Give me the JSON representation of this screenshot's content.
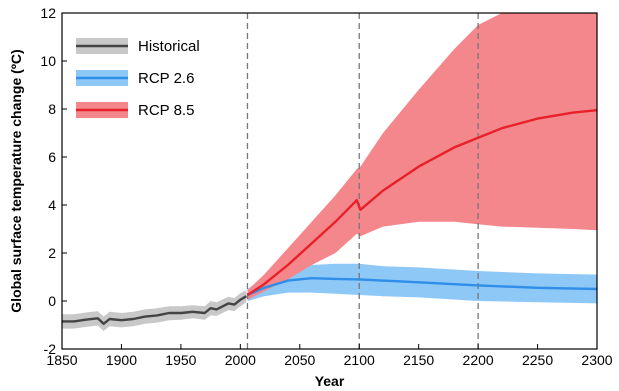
{
  "chart_data": {
    "type": "line",
    "xlabel": "Year",
    "ylabel": "Global surface temperature change (ºC)",
    "xlim": [
      1850,
      2300
    ],
    "ylim": [
      -2,
      12
    ],
    "xticks": [
      1850,
      1900,
      1950,
      2000,
      2050,
      2100,
      2150,
      2200,
      2250,
      2300
    ],
    "yticks": [
      -2,
      0,
      2,
      4,
      6,
      8,
      10,
      12
    ],
    "grid": false,
    "legend_position": "top-left",
    "reference_lines_x": [
      2006,
      2100,
      2200
    ],
    "series": [
      {
        "name": "Historical",
        "color": "#444444",
        "band_color": "#c8c8c8",
        "x": [
          1850,
          1860,
          1870,
          1880,
          1885,
          1890,
          1900,
          1910,
          1920,
          1930,
          1940,
          1950,
          1960,
          1970,
          1975,
          1980,
          1990,
          1995,
          2000,
          2005
        ],
        "y": [
          -0.85,
          -0.85,
          -0.78,
          -0.72,
          -0.95,
          -0.75,
          -0.8,
          -0.75,
          -0.65,
          -0.6,
          -0.5,
          -0.5,
          -0.45,
          -0.5,
          -0.3,
          -0.35,
          -0.1,
          -0.15,
          0.05,
          0.2
        ],
        "lower": [
          -1.15,
          -1.15,
          -1.08,
          -1.02,
          -1.25,
          -1.05,
          -1.1,
          -1.05,
          -0.95,
          -0.9,
          -0.8,
          -0.78,
          -0.72,
          -0.78,
          -0.6,
          -0.62,
          -0.38,
          -0.42,
          -0.22,
          -0.05
        ],
        "upper": [
          -0.55,
          -0.55,
          -0.48,
          -0.42,
          -0.65,
          -0.45,
          -0.5,
          -0.45,
          -0.35,
          -0.3,
          -0.22,
          -0.22,
          -0.18,
          -0.22,
          0.0,
          -0.05,
          0.18,
          0.12,
          0.32,
          0.45
        ]
      },
      {
        "name": "RCP 2.6",
        "color": "#2e8ee8",
        "band_color": "#8ec8f7",
        "x": [
          2006,
          2020,
          2040,
          2060,
          2080,
          2100,
          2120,
          2150,
          2200,
          2250,
          2300
        ],
        "y": [
          0.25,
          0.55,
          0.85,
          0.95,
          0.92,
          0.9,
          0.85,
          0.78,
          0.65,
          0.55,
          0.5
        ],
        "lower": [
          0.0,
          0.2,
          0.35,
          0.35,
          0.3,
          0.25,
          0.2,
          0.15,
          0.0,
          -0.05,
          -0.1
        ],
        "upper": [
          0.5,
          0.95,
          1.35,
          1.5,
          1.55,
          1.55,
          1.45,
          1.4,
          1.25,
          1.15,
          1.1
        ]
      },
      {
        "name": "RCP 8.5",
        "color": "#e8202a",
        "band_color": "#f4878c",
        "x": [
          2006,
          2020,
          2040,
          2060,
          2080,
          2098,
          2101,
          2120,
          2150,
          2180,
          2200,
          2220,
          2250,
          2280,
          2300
        ],
        "y": [
          0.25,
          0.7,
          1.5,
          2.4,
          3.3,
          4.2,
          3.8,
          4.6,
          5.6,
          6.4,
          6.8,
          7.2,
          7.6,
          7.85,
          7.95
        ],
        "lower": [
          0.05,
          0.4,
          0.9,
          1.5,
          2.0,
          2.8,
          2.7,
          3.1,
          3.3,
          3.3,
          3.2,
          3.1,
          3.05,
          3.0,
          2.95
        ],
        "upper": [
          0.45,
          1.1,
          2.2,
          3.3,
          4.4,
          5.5,
          5.6,
          7.0,
          8.8,
          10.5,
          11.5,
          12.0,
          12.0,
          12.0,
          12.0
        ]
      }
    ]
  }
}
